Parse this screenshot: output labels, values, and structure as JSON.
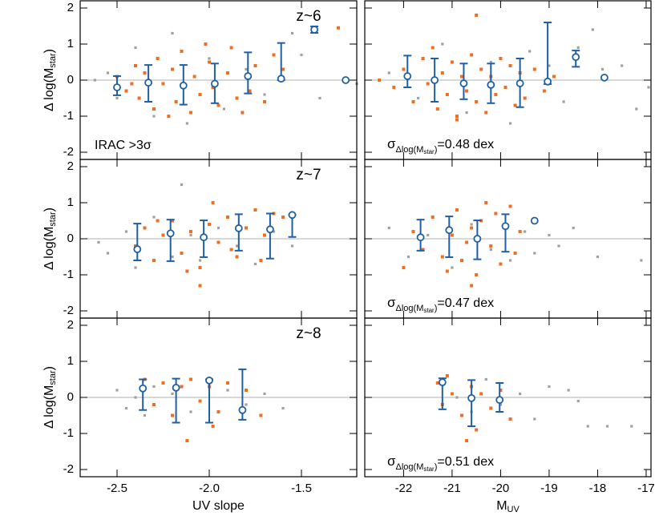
{
  "chart_data": [
    {
      "type": "scatter",
      "label": "z~6",
      "note": "IRAC >3σ",
      "note_color": "#f26c21",
      "ylabel": {
        "text": "Δ log(M",
        "sub": "star",
        "close": ")"
      },
      "xlim": [
        -2.7,
        -1.2
      ],
      "ylim": [
        -2.2,
        2.2
      ],
      "yticks": [
        -2,
        -1,
        0,
        1,
        2
      ],
      "xticks": [
        -2.5,
        {
          "value": -2,
          "label": "-2.0"
        },
        -1.5
      ],
      "xtick_labels": false,
      "hline": 0,
      "series": [
        {
          "color": "#f26c21",
          "x": [
            -2.5,
            -2.45,
            -2.4,
            -2.38,
            -2.35,
            -2.3,
            -2.28,
            -2.25,
            -2.2,
            -2.18,
            -2.15,
            -2.1,
            -2.08,
            -2.05,
            -2.0,
            -1.98,
            -1.95,
            -1.9,
            -1.88,
            -1.85,
            -1.8,
            -1.78,
            -1.75,
            -1.7,
            -1.65,
            -1.6,
            -2.42,
            -2.22,
            -2.02,
            -1.82,
            -1.3
          ],
          "values": [
            0.1,
            -0.3,
            0.4,
            -0.5,
            0.2,
            -0.8,
            0.6,
            -0.1,
            0.3,
            -0.6,
            0.8,
            -0.9,
            0.1,
            -0.4,
            0.5,
            -0.2,
            -0.7,
            0.2,
            0.9,
            -0.5,
            0.1,
            -0.3,
            0.4,
            -0.6,
            0.7,
            0.3,
            -0.1,
            -1.0,
            1.0,
            -0.9,
            1.45
          ]
        },
        {
          "color": "#a0a0a0",
          "x": [
            -2.62,
            -2.55,
            -2.5,
            -2.4,
            -2.3,
            -2.2,
            -2.12,
            -2.0,
            -1.92,
            -1.8,
            -1.7,
            -1.55,
            -1.5,
            -1.4,
            -1.2
          ],
          "values": [
            0.0,
            0.2,
            -0.5,
            0.9,
            -1.0,
            1.3,
            -1.2,
            0.6,
            -0.8,
            0.3,
            -0.4,
            1.3,
            0.7,
            -0.5,
            -0.1
          ]
        },
        {
          "color": "#1f5fa6",
          "x": [
            -2.5,
            -2.33,
            -2.14,
            -1.97,
            -1.79,
            -1.61,
            -1.43,
            -1.26
          ],
          "values": [
            -0.2,
            -0.07,
            -0.15,
            -0.1,
            0.11,
            0.04,
            1.4,
            0.0
          ],
          "lower": [
            -0.42,
            -0.6,
            -0.68,
            -0.64,
            -0.37,
            0.0,
            1.31,
            null
          ],
          "upper": [
            0.11,
            0.42,
            0.42,
            0.46,
            0.77,
            1.03,
            1.49,
            null
          ]
        }
      ]
    },
    {
      "type": "scatter",
      "sigma": {
        "symbol": "σ",
        "sub": "Δlog(M",
        "subsub": "star",
        "sub_close": ")",
        "text": "=0.48 dex"
      },
      "note_color": "#f26c21",
      "xlim": [
        -22.8,
        -16.9
      ],
      "ylim": [
        -2.2,
        2.2
      ],
      "yticks": [
        -2,
        -1,
        0,
        1,
        2
      ],
      "ytick_labels": false,
      "xticks": [
        -22,
        -21,
        -20,
        -19,
        -18,
        -17
      ],
      "xtick_labels": false,
      "hline": 0,
      "series": [
        {
          "color": "#f26c21",
          "x": [
            -22.5,
            -22.2,
            -22.0,
            -21.8,
            -21.6,
            -21.5,
            -21.4,
            -21.3,
            -21.2,
            -21.1,
            -21.0,
            -20.9,
            -20.8,
            -20.7,
            -20.6,
            -20.5,
            -20.4,
            -20.3,
            -20.2,
            -20.1,
            -20.0,
            -19.9,
            -19.8,
            -19.7,
            -19.6,
            -19.5,
            -19.3,
            -19.1,
            -18.9,
            -20.5,
            -20.9
          ],
          "values": [
            0.0,
            -0.2,
            0.3,
            -0.6,
            0.6,
            -0.1,
            0.9,
            -0.8,
            0.2,
            -0.4,
            0.5,
            -1.0,
            0.1,
            -0.3,
            0.7,
            -0.6,
            0.3,
            -0.9,
            0.1,
            -0.4,
            0.6,
            -0.2,
            0.4,
            -0.7,
            0.2,
            -0.5,
            0.3,
            -0.3,
            0.1,
            1.8,
            -1.1
          ]
        },
        {
          "color": "#a0a0a0",
          "x": [
            -22.3,
            -21.7,
            -21.2,
            -20.7,
            -20.2,
            -19.8,
            -19.4,
            -19.0,
            -18.7,
            -18.4,
            -18.1,
            -17.9,
            -17.5,
            -17.2,
            -16.95
          ],
          "values": [
            0.2,
            -0.5,
            1.0,
            -0.9,
            0.5,
            -1.2,
            0.8,
            0.4,
            -0.6,
            0.9,
            1.4,
            0.3,
            0.4,
            -0.8,
            -0.2
          ]
        },
        {
          "color": "#1f5fa6",
          "x": [
            -21.92,
            -21.36,
            -20.76,
            -20.2,
            -19.6,
            -19.03,
            -18.45,
            -17.86
          ],
          "values": [
            0.11,
            0.0,
            -0.09,
            -0.13,
            -0.09,
            -0.04,
            0.64,
            0.07
          ],
          "lower": [
            -0.2,
            -0.6,
            -0.53,
            -0.64,
            -0.75,
            -0.11,
            0.37,
            null
          ],
          "upper": [
            0.68,
            0.6,
            0.46,
            0.46,
            0.6,
            1.6,
            0.82,
            null
          ]
        }
      ]
    },
    {
      "type": "scatter",
      "label": "z~7",
      "ylabel": {
        "text": "Δ log(M",
        "sub": "star",
        "close": ")"
      },
      "xlim": [
        -2.7,
        -1.2
      ],
      "ylim": [
        -2.2,
        2.2
      ],
      "yticks": [
        -2,
        -1,
        0,
        1,
        2
      ],
      "xticks": [
        -2.5,
        {
          "value": -2,
          "label": "-2.0"
        },
        -1.5
      ],
      "xtick_labels": false,
      "hline": 0,
      "series": [
        {
          "color": "#f26c21",
          "x": [
            -2.4,
            -2.35,
            -2.3,
            -2.25,
            -2.2,
            -2.15,
            -2.1,
            -2.05,
            -2.0,
            -1.95,
            -1.9,
            -1.85,
            -1.8,
            -1.75,
            -1.7,
            -1.65,
            -1.6,
            -2.28,
            -2.12,
            -1.98,
            -1.88,
            -1.72,
            -2.05,
            -1.85
          ],
          "values": [
            -0.2,
            0.3,
            -0.6,
            0.1,
            0.5,
            -0.4,
            0.2,
            -0.8,
            0.4,
            -0.1,
            0.6,
            -0.5,
            0.3,
            0.8,
            0.1,
            0.7,
            0.6,
            0.5,
            -0.9,
            1.0,
            -0.3,
            -0.6,
            -1.3,
            0.3
          ]
        },
        {
          "color": "#a0a0a0",
          "x": [
            -2.6,
            -2.55,
            -2.45,
            -2.4,
            -2.3,
            -2.2,
            -2.1,
            -2.05,
            -1.95,
            -1.85,
            -1.75,
            -1.65,
            -1.55,
            -2.15
          ],
          "values": [
            -0.1,
            -0.4,
            0.2,
            -0.8,
            0.6,
            -0.5,
            0.1,
            -0.6,
            0.3,
            -0.2,
            -0.7,
            0.2,
            -0.2,
            1.5
          ]
        },
        {
          "color": "#1f5fa6",
          "x": [
            -2.39,
            -2.21,
            -2.03,
            -1.84,
            -1.67,
            -1.55
          ],
          "values": [
            -0.29,
            0.15,
            0.04,
            0.29,
            0.26,
            0.66
          ],
          "lower": [
            -0.6,
            -0.62,
            -0.51,
            -0.33,
            -0.55,
            0.05
          ],
          "upper": [
            0.42,
            0.53,
            0.51,
            0.68,
            0.7,
            0.66
          ]
        }
      ]
    },
    {
      "type": "scatter",
      "sigma": {
        "symbol": "σ",
        "sub": "Δlog(M",
        "subsub": "star",
        "sub_close": ")",
        "text": "=0.47 dex"
      },
      "note_color": "#f26c21",
      "xlim": [
        -22.8,
        -16.9
      ],
      "ylim": [
        -2.2,
        2.2
      ],
      "yticks": [
        -2,
        -1,
        0,
        1,
        2
      ],
      "ytick_labels": false,
      "xticks": [
        -22,
        -21,
        -20,
        -19,
        -18,
        -17
      ],
      "xtick_labels": false,
      "hline": 0,
      "series": [
        {
          "color": "#f26c21",
          "x": [
            -22.0,
            -21.8,
            -21.6,
            -21.4,
            -21.2,
            -21.0,
            -20.9,
            -20.8,
            -20.6,
            -20.5,
            -20.4,
            -20.2,
            -20.1,
            -20.0,
            -19.9,
            -19.7,
            -19.6,
            -21.1,
            -20.7,
            -20.3,
            -19.8,
            -20.6
          ],
          "values": [
            -0.8,
            0.2,
            -0.3,
            0.6,
            -0.5,
            0.1,
            0.8,
            -0.6,
            0.3,
            -1.0,
            0.5,
            -0.2,
            0.7,
            -0.7,
            0.4,
            -0.4,
            0.2,
            -0.9,
            -0.1,
            1.0,
            0.9,
            -1.3
          ]
        },
        {
          "color": "#a0a0a0",
          "x": [
            -22.3,
            -21.9,
            -21.5,
            -21.0,
            -20.6,
            -20.2,
            -19.8,
            -19.5,
            -19.3,
            -19.0,
            -18.8,
            -18.5,
            -18.0,
            -17.1
          ],
          "values": [
            0.3,
            -0.5,
            0.1,
            -0.8,
            0.4,
            -0.3,
            -0.6,
            0.2,
            -0.4,
            0.1,
            -0.2,
            0.3,
            -0.5,
            -0.6
          ]
        },
        {
          "color": "#1f5fa6",
          "x": [
            -21.65,
            -21.06,
            -20.48,
            -19.9,
            -19.3
          ],
          "values": [
            0.04,
            0.24,
            0.0,
            0.35,
            0.5
          ],
          "lower": [
            -0.33,
            -0.51,
            -0.57,
            -0.36,
            null
          ],
          "upper": [
            0.53,
            0.62,
            0.51,
            0.68,
            null
          ]
        }
      ]
    },
    {
      "type": "scatter",
      "label": "z~8",
      "ylabel": {
        "text": "Δ log(M",
        "sub": "star",
        "close": ")"
      },
      "xlabel": "UV slope",
      "xlim": [
        -2.7,
        -1.2
      ],
      "ylim": [
        -2.2,
        2.2
      ],
      "yticks": [
        -2,
        -1,
        0,
        1,
        2
      ],
      "xticks": [
        -2.5,
        {
          "value": -2,
          "label": "-2.0"
        },
        -1.5
      ],
      "hline": 0,
      "series": [
        {
          "color": "#f26c21",
          "x": [
            -2.35,
            -2.3,
            -2.25,
            -2.2,
            -2.15,
            -2.1,
            -2.05,
            -2.0,
            -1.95,
            -1.9,
            -1.8,
            -1.72,
            -2.12,
            -1.98
          ],
          "values": [
            0.5,
            -0.2,
            0.4,
            -0.5,
            0.3,
            0.5,
            -0.1,
            0.3,
            -0.4,
            0.4,
            0.2,
            -0.5,
            -1.2,
            -0.8
          ]
        },
        {
          "color": "#a0a0a0",
          "x": [
            -2.5,
            -2.45,
            -2.4,
            -2.35,
            -2.3,
            -2.2,
            -2.1,
            -2.0,
            -1.9,
            -1.8,
            -1.7,
            -1.6
          ],
          "values": [
            0.2,
            -0.3,
            0.0,
            -0.5,
            0.3,
            0.1,
            -0.4,
            0.4,
            0.2,
            -0.2,
            0.1,
            -0.3
          ]
        },
        {
          "color": "#1f5fa6",
          "x": [
            -2.36,
            -2.18,
            -2.0,
            -1.82
          ],
          "values": [
            0.25,
            0.27,
            0.47,
            -0.35
          ],
          "lower": [
            -0.35,
            -0.7,
            -0.7,
            -0.62
          ],
          "upper": [
            0.5,
            0.52,
            0.5,
            0.78
          ]
        }
      ]
    },
    {
      "type": "scatter",
      "sigma": {
        "symbol": "σ",
        "sub": "Δlog(M",
        "subsub": "star",
        "sub_close": ")",
        "text": "=0.51 dex"
      },
      "note_color": "#f26c21",
      "xlabel": {
        "text": "M",
        "sub": "UV"
      },
      "xlim": [
        -22.8,
        -16.9
      ],
      "ylim": [
        -2.2,
        2.2
      ],
      "yticks": [
        -2,
        -1,
        0,
        1,
        2
      ],
      "ytick_labels": false,
      "xticks": [
        -22,
        -21,
        -20,
        -19,
        -18,
        -17
      ],
      "hline": 0,
      "series": [
        {
          "color": "#f26c21",
          "x": [
            -21.3,
            -21.2,
            -21.1,
            -21.0,
            -20.8,
            -20.6,
            -20.5,
            -20.4,
            -20.2,
            -20.0,
            -19.8,
            -20.7
          ],
          "values": [
            0.4,
            -0.2,
            0.6,
            0.1,
            -0.5,
            0.3,
            -0.9,
            0.1,
            -0.3,
            0.2,
            -0.6,
            -1.2
          ]
        },
        {
          "color": "#a0a0a0",
          "x": [
            -20.9,
            -20.6,
            -20.3,
            -20.0,
            -19.6,
            -19.3,
            -19.0,
            -18.6,
            -18.4,
            -18.2,
            -17.8,
            -17.3
          ],
          "values": [
            0.0,
            -0.4,
            0.5,
            -0.2,
            0.1,
            -0.6,
            0.3,
            0.2,
            -0.1,
            -0.8,
            -0.8,
            -0.8
          ]
        },
        {
          "color": "#1f5fa6",
          "x": [
            -21.2,
            -20.6,
            -20.02
          ],
          "values": [
            0.42,
            -0.02,
            -0.07
          ],
          "lower": [
            -0.33,
            -0.8,
            -0.4
          ],
          "upper": [
            0.53,
            0.48,
            0.4
          ]
        }
      ]
    }
  ]
}
